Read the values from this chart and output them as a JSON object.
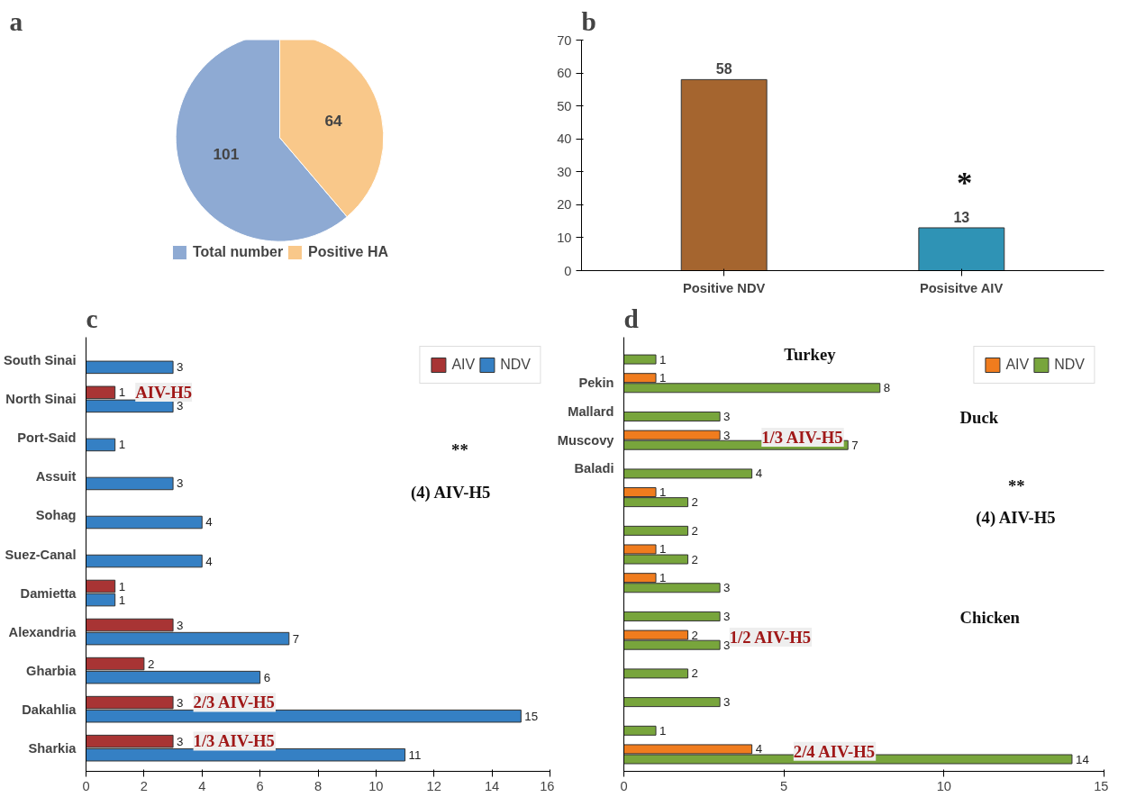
{
  "chart_data": [
    {
      "type": "pie",
      "title": "a",
      "categories": [
        "Total number",
        "Positive HA"
      ],
      "values": [
        101,
        64
      ],
      "colors": [
        "#8eaad3",
        "#f9c88a"
      ],
      "data_labels": true,
      "legend": "bottom"
    },
    {
      "type": "bar",
      "title": "b",
      "categories": [
        "Positive NDV",
        "Posisitve AIV"
      ],
      "values": [
        58,
        13
      ],
      "colors": [
        "#a5652f",
        "#2f93b5"
      ],
      "ylim": [
        0,
        70
      ],
      "yticks": [
        0,
        10,
        20,
        30,
        40,
        50,
        60,
        70
      ],
      "data_labels": true,
      "grid": false,
      "annotations": [
        "*"
      ]
    },
    {
      "type": "bar",
      "title": "c",
      "orientation": "horizontal",
      "categories": [
        "South Sinai",
        "North Sinai",
        "Port-Said",
        "Assuit",
        "Sohag",
        "Suez-Canal",
        "Damietta",
        "Alexandria",
        "Gharbia",
        "Dakahlia",
        "Sharkia"
      ],
      "series": [
        {
          "name": "AIV",
          "color": "#a83434",
          "values": [
            null,
            1,
            null,
            null,
            null,
            null,
            1,
            3,
            2,
            3,
            3
          ]
        },
        {
          "name": "NDV",
          "color": "#3580c4",
          "values": [
            3,
            3,
            1,
            3,
            4,
            4,
            1,
            7,
            6,
            15,
            11
          ]
        }
      ],
      "xlim": [
        0,
        16
      ],
      "xticks": [
        0,
        2,
        4,
        6,
        8,
        10,
        12,
        14,
        16
      ],
      "data_labels": true,
      "legend": "top right",
      "grid": false,
      "annotations": [
        "AIV-H5",
        "2/3 AIV-H5",
        "1/3 AIV-H5",
        "(4) AIV-H5",
        "**"
      ]
    },
    {
      "type": "bar",
      "title": "d",
      "orientation": "horizontal",
      "categories": [
        null,
        "Pekin",
        "Mallard",
        "Muscovy",
        "Baladi",
        null,
        null,
        null,
        null,
        null,
        null,
        null,
        null,
        null,
        null
      ],
      "series": [
        {
          "name": "AIV",
          "color": "#f07c1e",
          "values": [
            null,
            1,
            null,
            3,
            null,
            1,
            null,
            1,
            1,
            null,
            2,
            null,
            null,
            null,
            4
          ]
        },
        {
          "name": "NDV",
          "color": "#78a53c",
          "values": [
            1,
            8,
            3,
            7,
            4,
            2,
            2,
            2,
            3,
            3,
            3,
            2,
            3,
            1,
            14
          ]
        }
      ],
      "xlim": [
        0,
        15
      ],
      "xticks": [
        0,
        5,
        10,
        15
      ],
      "data_labels": true,
      "legend": "top right",
      "grid": false,
      "annotations": [
        "(4) AIV-H5",
        "**",
        "Turkey",
        "Duck",
        "Chicken",
        "1/3 AIV-H5",
        "1/2 AIV-H5",
        "2/4 AIV-H5"
      ]
    }
  ]
}
